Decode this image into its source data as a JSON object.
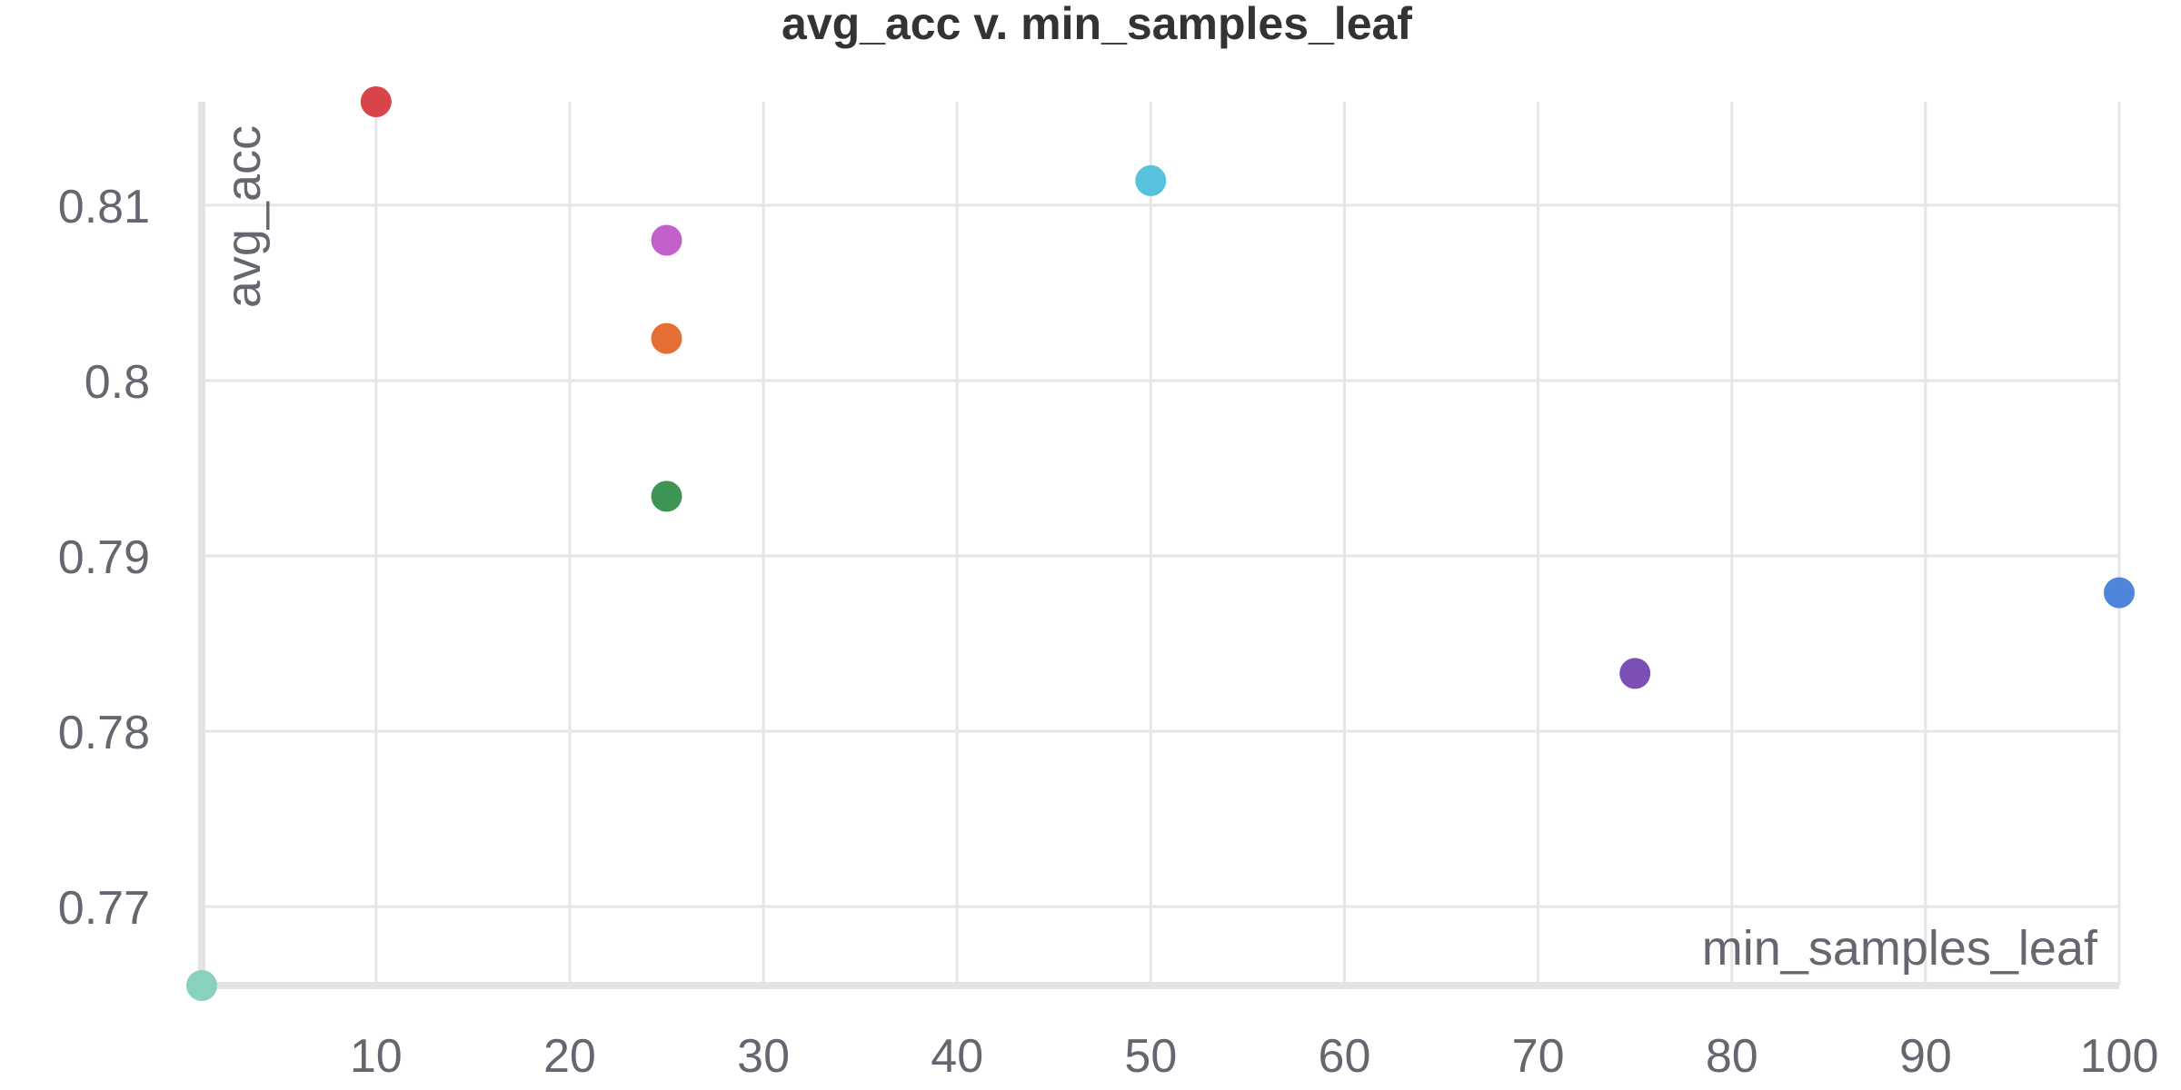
{
  "chart_data": {
    "type": "scatter",
    "title": "avg_acc v. min_samples_leaf",
    "xlabel": "min_samples_leaf",
    "ylabel": "avg_acc",
    "xlim": [
      1,
      100
    ],
    "ylim": [
      0.7655,
      0.8159
    ],
    "x_ticks": [
      10,
      20,
      30,
      40,
      50,
      60,
      70,
      80,
      90,
      100
    ],
    "y_ticks": [
      0.77,
      0.78,
      0.79,
      0.8,
      0.81
    ],
    "x_tick_labels": [
      "10",
      "20",
      "30",
      "40",
      "50",
      "60",
      "70",
      "80",
      "90",
      "100"
    ],
    "y_tick_labels": [
      "0.77",
      "0.78",
      "0.79",
      "0.8",
      "0.81"
    ],
    "grid": true,
    "legend": "none",
    "points": [
      {
        "x": 1,
        "y": 0.7655,
        "color": "#88d1bd"
      },
      {
        "x": 10,
        "y": 0.8159,
        "color": "#d9444a"
      },
      {
        "x": 25,
        "y": 0.808,
        "color": "#c260cc"
      },
      {
        "x": 25,
        "y": 0.8024,
        "color": "#e46f34"
      },
      {
        "x": 25,
        "y": 0.7934,
        "color": "#3e9454"
      },
      {
        "x": 50,
        "y": 0.8114,
        "color": "#56c2dc"
      },
      {
        "x": 75,
        "y": 0.7833,
        "color": "#7c4fb4"
      },
      {
        "x": 100,
        "y": 0.7879,
        "color": "#4f86dc"
      }
    ]
  }
}
